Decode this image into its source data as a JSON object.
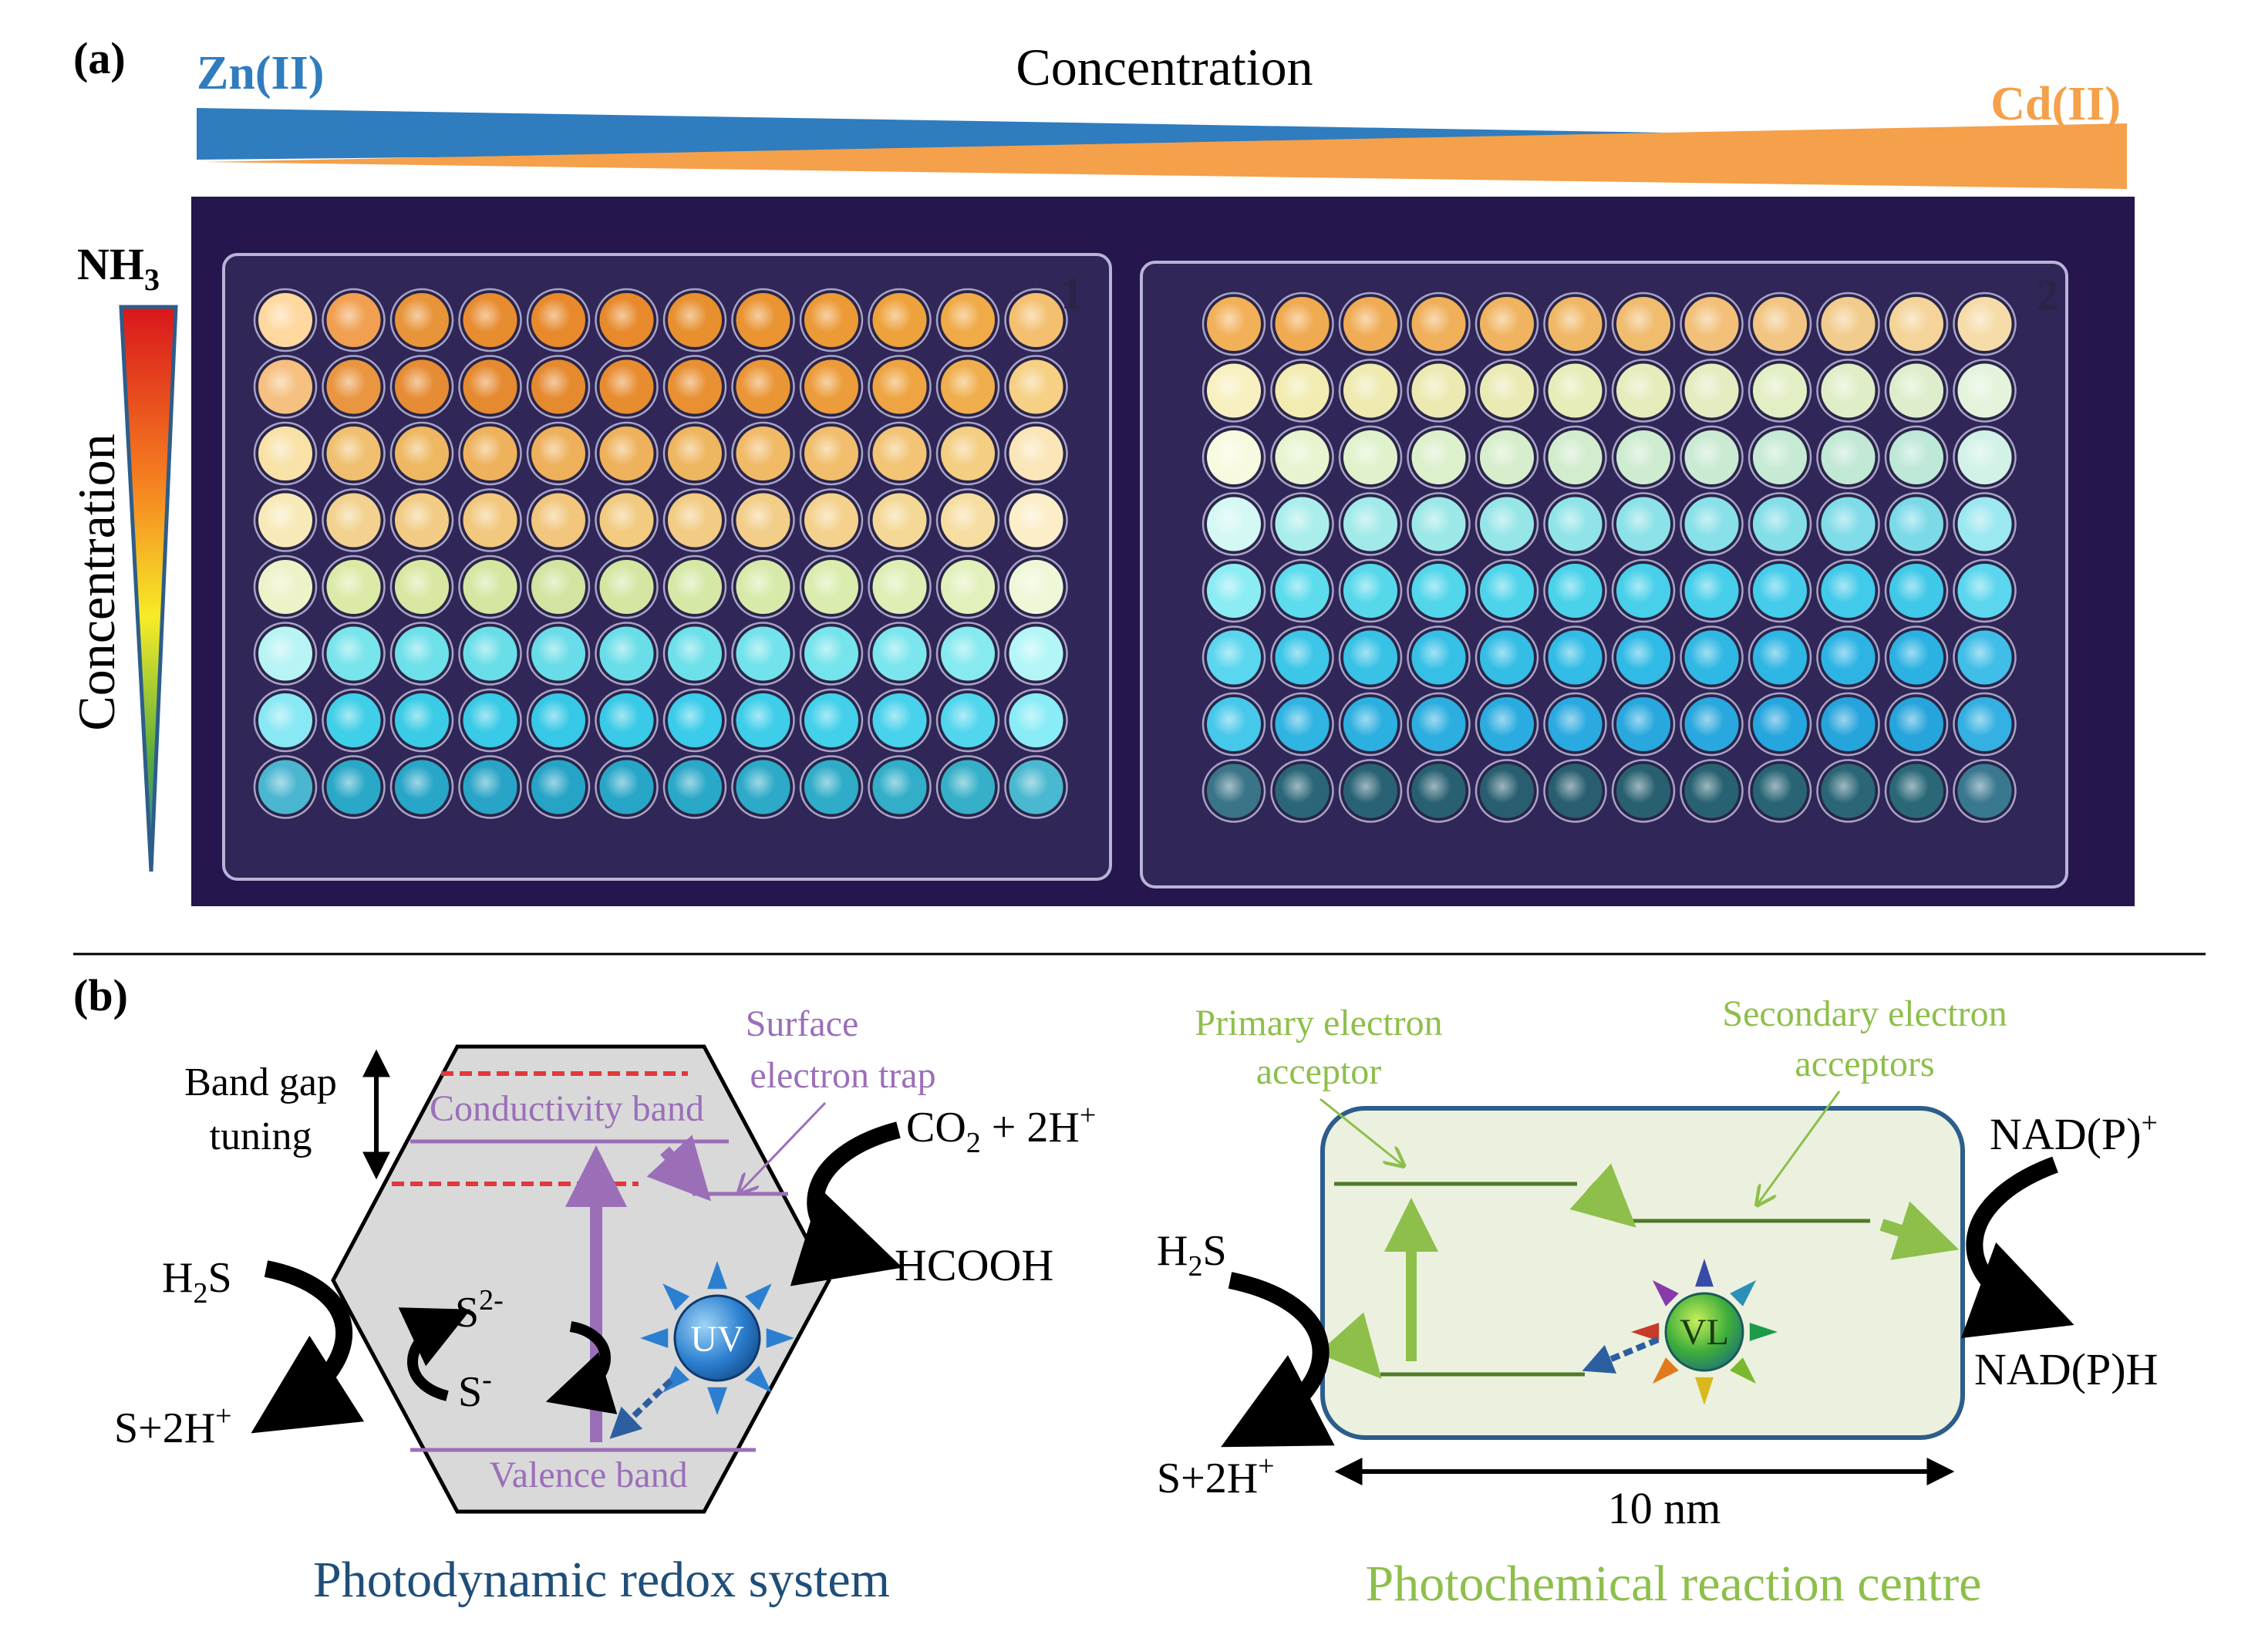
{
  "panel_a": {
    "label": "(a)",
    "metal_left": "Zn(II)",
    "metal_right": "Cd(II)",
    "top_axis_label": "Concentration",
    "left_axis_label": "Concentration",
    "nh3_base": "NH",
    "nh3_sub": "3",
    "plates": [
      {
        "number": "1",
        "well_colors": [
          [
            "#ffd8a0",
            "#f0a050",
            "#e89438",
            "#e88c30",
            "#e88a2c",
            "#e88a2c",
            "#e8902e",
            "#ea9432",
            "#ec9a36",
            "#eea23c",
            "#f0aa48",
            "#f4c070"
          ],
          [
            "#f5c080",
            "#ea9640",
            "#e68c34",
            "#e68a30",
            "#e68a30",
            "#e88c30",
            "#e89032",
            "#ea9636",
            "#ec9c3a",
            "#eea440",
            "#f0ae4c",
            "#f6d084"
          ],
          [
            "#f8e2a8",
            "#f0c070",
            "#eeb862",
            "#eeb25c",
            "#eeb05a",
            "#eeb25c",
            "#efb660",
            "#f0ba66",
            "#f0be6c",
            "#f2c474",
            "#f4ce82",
            "#fae6b8"
          ],
          [
            "#f8eab8",
            "#f2d28e",
            "#f2cc84",
            "#f2c87e",
            "#f2c67c",
            "#f2ca80",
            "#f2cc84",
            "#f2ce88",
            "#f4d28e",
            "#f4d896",
            "#f6dea2",
            "#fbeec8"
          ],
          [
            "#eef2c8",
            "#dceaa8",
            "#d8e8a2",
            "#d4e6a0",
            "#d2e4a0",
            "#d4e6a2",
            "#d6e8a6",
            "#d8eaaa",
            "#daecae",
            "#deeeb4",
            "#e2f0bc",
            "#eef8d8"
          ],
          [
            "#b8f4f4",
            "#78e4ec",
            "#6ee0ea",
            "#6adee8",
            "#68dce8",
            "#6adee8",
            "#6ee0ea",
            "#72e2ec",
            "#76e4ec",
            "#7ce6ee",
            "#86eaf0",
            "#b4f6f8"
          ],
          [
            "#88e8f4",
            "#40cfe8",
            "#3acce6",
            "#38cae6",
            "#36c8e6",
            "#38cae6",
            "#3accea",
            "#3eceea",
            "#42d0ea",
            "#48d2ec",
            "#52d6ee",
            "#8aecf6"
          ],
          [
            "#4ab6d0",
            "#2aa8c8",
            "#28a6c8",
            "#28a4c6",
            "#26a4c6",
            "#28a6c8",
            "#2aa8c8",
            "#2caac8",
            "#2eacc8",
            "#32aec8",
            "#36b0c8",
            "#4ab8d0"
          ]
        ]
      },
      {
        "number": "2",
        "well_colors": [
          [
            "#f2b058",
            "#f0aa50",
            "#f0ac54",
            "#f0b05a",
            "#f0b460",
            "#f0b866",
            "#f0bc6e",
            "#f2c078",
            "#f2c682",
            "#f2cc8c",
            "#f4d498",
            "#f6dca8"
          ],
          [
            "#f8f0c0",
            "#f2ecb0",
            "#eeeab0",
            "#eceab2",
            "#eaeab4",
            "#e8ecb8",
            "#e6ecbc",
            "#e4ecc0",
            "#e2eec4",
            "#e0eec8",
            "#deeecc",
            "#e4f4dc"
          ],
          [
            "#f8fae0",
            "#e8f4d0",
            "#e0f2cc",
            "#dcf0cc",
            "#d6eecc",
            "#d2ecce",
            "#ceecd0",
            "#caead2",
            "#c6ead4",
            "#c2e8d6",
            "#bee8d8",
            "#d2f2e8"
          ],
          [
            "#d4f8f4",
            "#aaeeec",
            "#a2eaea",
            "#9ce8e8",
            "#96e6e8",
            "#90e4e8",
            "#8ce2e8",
            "#88e0e8",
            "#84dee8",
            "#80dce8",
            "#7cdae8",
            "#9ce8f0"
          ],
          [
            "#8cecf4",
            "#5cdcec",
            "#56d8ea",
            "#52d6ea",
            "#4ed4ea",
            "#4ad2ea",
            "#48d0ea",
            "#46ceea",
            "#44ccea",
            "#42caea",
            "#40c8e8",
            "#5cd6ee"
          ],
          [
            "#5ad6ee",
            "#3cc6e8",
            "#38c2e6",
            "#36c0e6",
            "#34bee6",
            "#32bce6",
            "#30bae6",
            "#30b8e4",
            "#2eb6e4",
            "#2eb4e4",
            "#2cb2e2",
            "#40bee8"
          ],
          [
            "#46c8ea",
            "#30b4e2",
            "#2cb0e0",
            "#2caee0",
            "#2aace0",
            "#2aaae0",
            "#28a8de",
            "#28a8de",
            "#26a6de",
            "#26a4dc",
            "#26a4dc",
            "#34b0e2"
          ],
          [
            "#3a7488",
            "#2a6678",
            "#286274",
            "#286072",
            "#285e70",
            "#285e70",
            "#286070",
            "#286272",
            "#286474",
            "#2a6676",
            "#2a6878",
            "#3a7890"
          ]
        ]
      }
    ]
  },
  "panel_b": {
    "label": "(b)",
    "left": {
      "band_gap_line1": "Band gap",
      "band_gap_line2": "tuning",
      "surface_trap_line1": "Surface",
      "surface_trap_line2": "electron trap",
      "conductivity_band": "Conductivity band",
      "valence_band": "Valence band",
      "co2_prefix": "CO",
      "co2_sub": "2",
      "co2_suffix": " + 2H",
      "co2_sup": "+",
      "hcooh": "HCOOH",
      "h2s_prefix": "H",
      "h2s_sub": "2",
      "h2s_suffix": "S",
      "s_plus_prefix": "S+2H",
      "s_plus_sup": "+",
      "s2_base": "S",
      "s2_sup": "2-",
      "s1_base": "S",
      "s1_sup": "-",
      "uv": "UV",
      "caption": "Photodynamic redox system"
    },
    "right": {
      "primary_line1": "Primary electron",
      "primary_line2": "acceptor",
      "secondary_line1": "Secondary electron",
      "secondary_line2": "acceptors",
      "nadp_plus_base": "NAD(P)",
      "nadp_plus_sup": "+",
      "nadph": "NAD(P)H",
      "h2s_prefix": "H",
      "h2s_sub": "2",
      "h2s_suffix": "S",
      "s_plus_prefix": "S+2H",
      "s_plus_sup": "+",
      "vl": "VL",
      "scale": "10 nm",
      "caption": "Photochemical reaction centre"
    }
  },
  "colors": {
    "zn_blue": "#2f7cbf",
    "cd_orange": "#f5a04a",
    "purple": "#9b6fb8",
    "green": "#8dbf4a",
    "navy": "#1f4e79",
    "red_dash": "#e0393e",
    "hexagon_fill": "#d9d9d9",
    "cell_fill": "#ebf1de",
    "cell_stroke": "#2d5d8a"
  }
}
